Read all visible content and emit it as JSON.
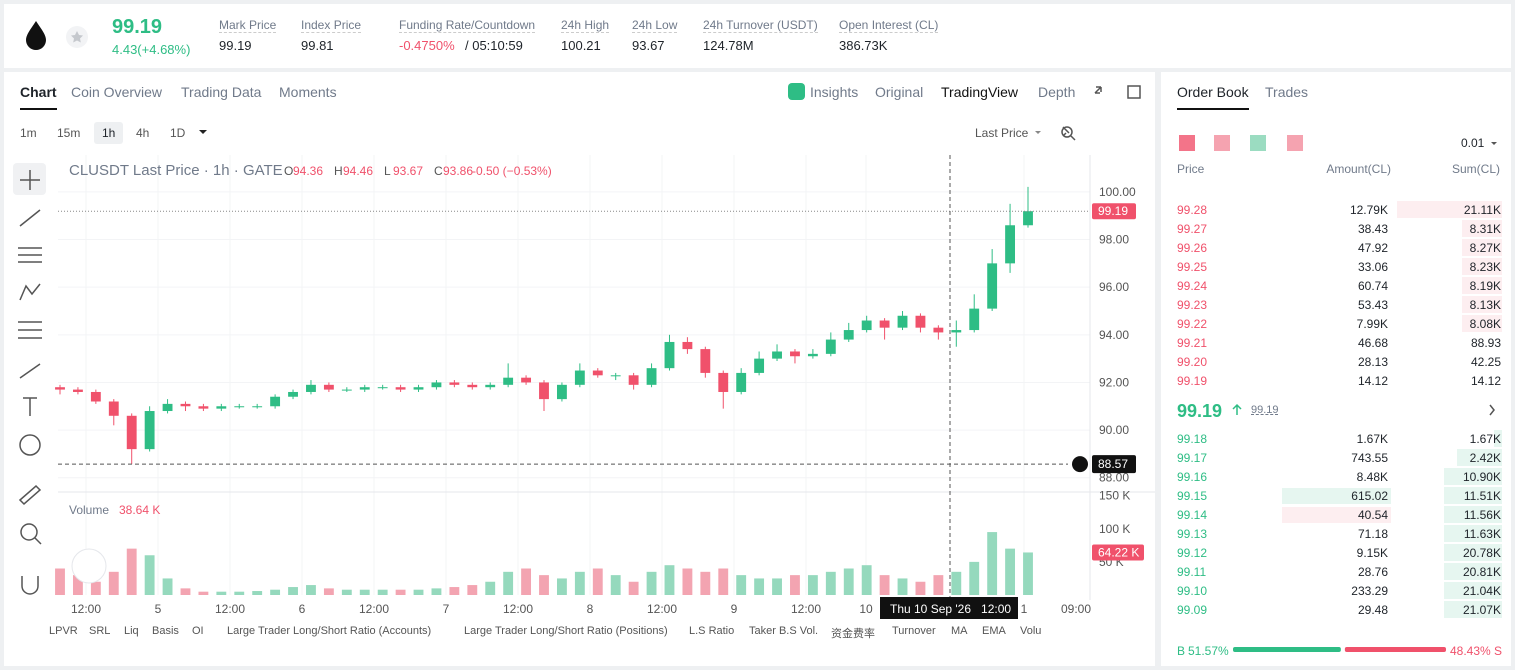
{
  "header": {
    "symbol_price": "99.19",
    "change": "4.43(+4.68%)",
    "stats": [
      {
        "label": "Mark Price",
        "value": "99.19"
      },
      {
        "label": "Index Price",
        "value": "99.81"
      },
      {
        "label": "Funding Rate/Countdown",
        "value": "-0.4750%",
        "extra": "/ 05:10:59"
      },
      {
        "label": "24h High",
        "value": "100.21"
      },
      {
        "label": "24h Low",
        "value": "93.67"
      },
      {
        "label": "24h Turnover (USDT)",
        "value": "124.78M"
      },
      {
        "label": "Open Interest (CL)",
        "value": "386.73K"
      }
    ]
  },
  "chart_tabs": [
    "Chart",
    "Coin Overview",
    "Trading Data",
    "Moments"
  ],
  "view_tabs": [
    "Insights",
    "Original",
    "TradingView",
    "Depth"
  ],
  "intervals": [
    "1m",
    "15m",
    "1h",
    "4h",
    "1D"
  ],
  "price_source": "Last Price",
  "chart": {
    "type": "candlestick",
    "legend_title": "CLUSDT Last Price · 1h · GATE",
    "ohlc_legend": [
      {
        "key": "O",
        "value": "94.36"
      },
      {
        "key": "H",
        "value": "94.46"
      },
      {
        "key": "L",
        "value": "93.67"
      },
      {
        "key": "C",
        "value": "93.86"
      }
    ],
    "legend_change": "-0.50 (−0.53%)",
    "open": [
      91.8,
      91.7,
      91.6,
      91.2,
      90.6,
      89.2,
      90.8,
      91.1,
      91.0,
      90.9,
      91.0,
      91.0,
      91.0,
      91.4,
      91.6,
      91.9,
      91.7,
      91.7,
      91.8,
      91.8,
      91.7,
      91.8,
      92.0,
      91.9,
      91.8,
      91.9,
      92.2,
      92.0,
      91.3,
      91.9,
      92.5,
      92.3,
      92.3,
      91.9,
      92.6,
      93.7,
      93.4,
      92.4,
      91.6,
      92.4,
      93.0,
      93.3,
      93.1,
      93.2,
      93.8,
      94.2,
      94.6,
      94.3,
      94.8,
      94.3,
      94.1,
      94.2,
      95.1,
      97.0,
      98.6
    ],
    "high": [
      91.9,
      91.8,
      91.7,
      91.3,
      90.7,
      91.0,
      91.3,
      91.2,
      91.1,
      91.1,
      91.1,
      91.1,
      91.5,
      91.7,
      92.1,
      92.0,
      91.8,
      91.9,
      91.9,
      91.9,
      91.9,
      92.1,
      92.1,
      92.0,
      92.0,
      92.8,
      92.3,
      92.1,
      92.0,
      92.8,
      92.6,
      92.4,
      92.4,
      92.8,
      94.0,
      93.9,
      93.5,
      92.5,
      92.6,
      93.3,
      93.6,
      93.4,
      93.4,
      94.1,
      94.5,
      94.8,
      94.7,
      95.0,
      94.9,
      94.4,
      94.6,
      95.7,
      97.6,
      99.5,
      100.21
    ],
    "low": [
      91.5,
      91.5,
      91.1,
      90.2,
      88.57,
      89.1,
      90.7,
      90.8,
      90.8,
      90.8,
      90.9,
      90.9,
      90.9,
      91.3,
      91.5,
      91.6,
      91.6,
      91.6,
      91.7,
      91.6,
      91.6,
      91.7,
      91.8,
      91.7,
      91.7,
      91.8,
      91.9,
      90.8,
      91.2,
      91.8,
      92.2,
      92.1,
      91.7,
      91.8,
      92.5,
      93.2,
      92.2,
      90.9,
      91.5,
      92.3,
      92.9,
      92.8,
      93.0,
      93.1,
      93.7,
      94.1,
      93.8,
      94.2,
      94.1,
      93.8,
      93.5,
      94.1,
      95.0,
      96.6,
      98.5
    ],
    "close": [
      91.7,
      91.6,
      91.2,
      90.6,
      89.2,
      90.8,
      91.1,
      91.0,
      90.9,
      91.0,
      91.0,
      91.0,
      91.4,
      91.6,
      91.9,
      91.7,
      91.7,
      91.8,
      91.8,
      91.7,
      91.8,
      92.0,
      91.9,
      91.8,
      91.9,
      92.2,
      92.0,
      91.3,
      91.9,
      92.5,
      92.3,
      92.3,
      91.9,
      92.6,
      93.7,
      93.4,
      92.4,
      91.6,
      92.4,
      93.0,
      93.3,
      93.1,
      93.2,
      93.8,
      94.2,
      94.6,
      94.3,
      94.8,
      94.3,
      94.1,
      94.2,
      95.1,
      97.0,
      98.6,
      99.19
    ],
    "ylim": [
      87.4,
      101.55
    ],
    "yticks": [
      {
        "value": 88,
        "label": "88.00"
      },
      {
        "value": 90,
        "label": "90.00"
      },
      {
        "value": 92,
        "label": "92.00"
      },
      {
        "value": 94,
        "label": "94.00"
      },
      {
        "value": 96,
        "label": "96.00"
      },
      {
        "value": 98,
        "label": "98.00"
      },
      {
        "value": 100,
        "label": "100.00"
      }
    ],
    "last_price": {
      "value": 99.19,
      "label": "99.19"
    },
    "crosshair": {
      "value": 88.57,
      "label": "88.57"
    },
    "volume_title": "Volume",
    "volume_legend": "38.64 K",
    "volume": [
      40,
      30,
      20,
      35,
      70,
      60,
      25,
      10,
      5,
      5,
      5,
      6,
      8,
      12,
      15,
      10,
      8,
      8,
      8,
      8,
      8,
      10,
      12,
      15,
      20,
      35,
      40,
      30,
      25,
      35,
      40,
      30,
      20,
      35,
      45,
      40,
      35,
      40,
      30,
      25,
      25,
      30,
      30,
      35,
      40,
      45,
      30,
      25,
      20,
      30,
      35,
      50,
      95,
      70,
      64.22
    ],
    "volume_last_label": "64.22 K",
    "vlim": [
      0,
      154
    ],
    "vticks": [
      {
        "value": 50,
        "label": "50 K"
      },
      {
        "value": 100,
        "label": "100 K"
      },
      {
        "value": 150,
        "label": "150 K"
      }
    ],
    "xlabels": [
      "12:00",
      "5",
      "12:00",
      "6",
      "12:00",
      "7",
      "12:00",
      "8",
      "12:00",
      "9",
      "12:00",
      "10",
      "1",
      "09:00"
    ],
    "crosshair_time": "Thu 10 Sep '26   12:00"
  },
  "indicators": [
    "LPVR",
    "SRL",
    "Liq",
    "Basis",
    "OI",
    "Large Trader Long/Short Ratio (Accounts)",
    "Large Trader Long/Short Ratio (Positions)",
    "L.S Ratio",
    "Taker B.S Vol.",
    "资金费率",
    "Turnover",
    "MA",
    "EMA",
    "Volu"
  ],
  "order_book": {
    "tabs": [
      "Order Book",
      "Trades"
    ],
    "precision": "0.01",
    "columns": [
      "Price",
      "Amount(CL)",
      "Sum(CL)"
    ],
    "asks": [
      [
        "99.28",
        "12.79K",
        "21.11K"
      ],
      [
        "99.27",
        "38.43",
        "8.31K"
      ],
      [
        "99.26",
        "47.92",
        "8.27K"
      ],
      [
        "99.25",
        "33.06",
        "8.23K"
      ],
      [
        "99.24",
        "60.74",
        "8.19K"
      ],
      [
        "99.23",
        "53.43",
        "8.13K"
      ],
      [
        "99.22",
        "7.99K",
        "8.08K"
      ],
      [
        "99.21",
        "46.68",
        "88.93"
      ],
      [
        "99.20",
        "28.13",
        "42.25"
      ],
      [
        "99.19",
        "14.12",
        "14.12"
      ]
    ],
    "mid_price": "99.19",
    "mark_price": "99.19",
    "bids": [
      [
        "99.18",
        "1.67K",
        "1.67K"
      ],
      [
        "99.17",
        "743.55",
        "2.42K"
      ],
      [
        "99.16",
        "8.48K",
        "10.90K"
      ],
      [
        "99.15",
        "615.02",
        "11.51K"
      ],
      [
        "99.14",
        "40.54",
        "11.56K"
      ],
      [
        "99.13",
        "71.18",
        "11.63K"
      ],
      [
        "99.12",
        "9.15K",
        "20.78K"
      ],
      [
        "99.11",
        "28.76",
        "20.81K"
      ],
      [
        "99.10",
        "233.29",
        "21.04K"
      ],
      [
        "99.09",
        "29.48",
        "21.07K"
      ]
    ],
    "buy_letter": "B",
    "buy": {
      "value": 51.57,
      "label": "51.57%"
    },
    "sell": {
      "value": 48.43,
      "label": "48.43%"
    },
    "sell_letter": "S"
  }
}
